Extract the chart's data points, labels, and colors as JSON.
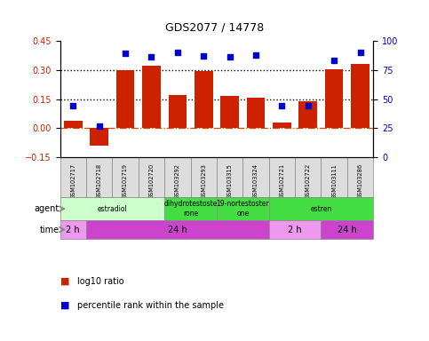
{
  "title": "GDS2077 / 14778",
  "samples": [
    "GSM102717",
    "GSM102718",
    "GSM102719",
    "GSM102720",
    "GSM103292",
    "GSM103293",
    "GSM103315",
    "GSM103324",
    "GSM102721",
    "GSM102722",
    "GSM103111",
    "GSM103286"
  ],
  "log10_ratio": [
    0.04,
    -0.09,
    0.3,
    0.32,
    0.17,
    0.295,
    0.165,
    0.155,
    0.03,
    0.14,
    0.305,
    0.33
  ],
  "percentile_pct": [
    44,
    27,
    89,
    86,
    90,
    87,
    86,
    88,
    44,
    44,
    83,
    90
  ],
  "bar_color": "#cc2200",
  "dot_color": "#0000cc",
  "ylim_left": [
    -0.15,
    0.45
  ],
  "ylim_right": [
    0,
    100
  ],
  "yticks_left": [
    -0.15,
    0,
    0.15,
    0.3,
    0.45
  ],
  "yticks_right": [
    0,
    25,
    50,
    75,
    100
  ],
  "agent_groups": [
    {
      "label": "estradiol",
      "start": 0,
      "end": 4,
      "color": "#ccffcc"
    },
    {
      "label": "dihydrotestoste\nrone",
      "start": 4,
      "end": 6,
      "color": "#44dd44"
    },
    {
      "label": "19-nortestoster\none",
      "start": 6,
      "end": 8,
      "color": "#44dd44"
    },
    {
      "label": "estren",
      "start": 8,
      "end": 12,
      "color": "#44dd44"
    }
  ],
  "time_groups": [
    {
      "label": "2 h",
      "start": 0,
      "end": 1,
      "color": "#ee99ee"
    },
    {
      "label": "24 h",
      "start": 1,
      "end": 8,
      "color": "#cc44cc"
    },
    {
      "label": "2 h",
      "start": 8,
      "end": 10,
      "color": "#ee99ee"
    },
    {
      "label": "24 h",
      "start": 10,
      "end": 12,
      "color": "#cc44cc"
    }
  ],
  "bar_color_legend": "#cc2200",
  "dot_color_legend": "#0000cc",
  "ylabel_left_color": "#cc2200",
  "ylabel_right_color": "#0000cc",
  "background_color": "#ffffff",
  "bar_width": 0.7,
  "sample_box_color": "#dddddd",
  "sample_box_edge": "#888888"
}
